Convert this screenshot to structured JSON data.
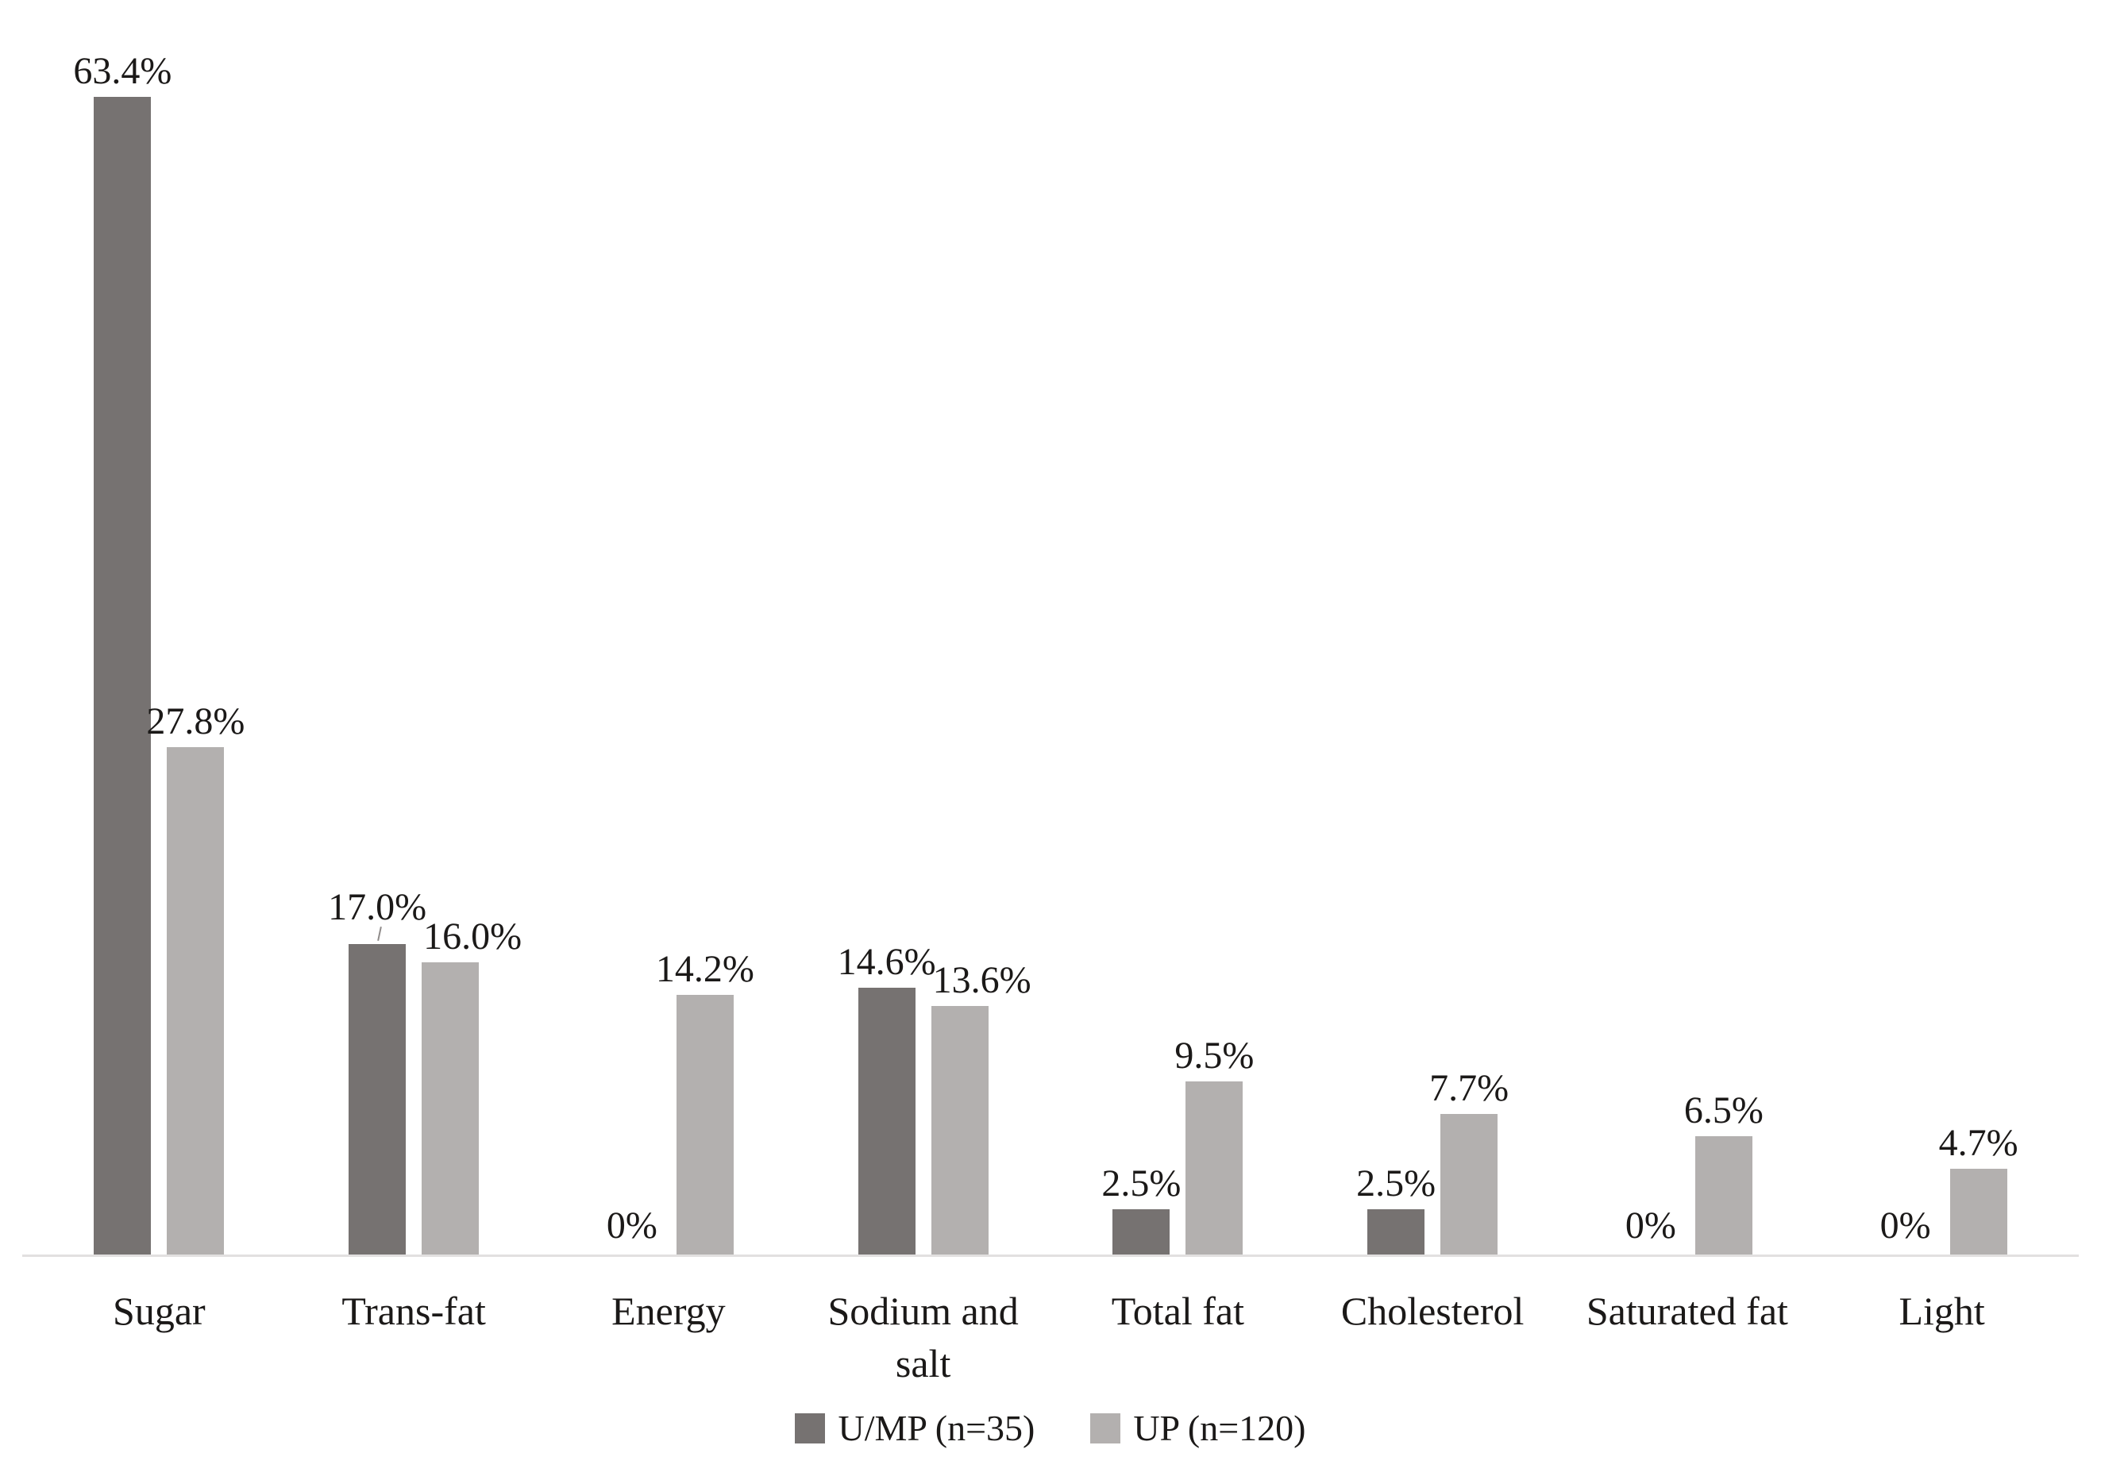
{
  "chart_data": {
    "type": "bar",
    "categories": [
      "Sugar",
      "Trans-fat",
      "Energy",
      "Sodium and\nsalt",
      "Total fat",
      "Cholesterol",
      "Saturated fat",
      "Light"
    ],
    "series": [
      {
        "name": "U/MP (n=35)",
        "color": "#767271",
        "values": [
          63.4,
          17.0,
          0,
          14.6,
          2.5,
          2.5,
          0,
          0
        ],
        "labels": [
          "63.4%",
          "17.0%",
          "0%",
          "14.6%",
          "2.5%",
          "2.5%",
          "0%",
          "0%"
        ]
      },
      {
        "name": "UP (n=120)",
        "color": "#b3b0af",
        "values": [
          27.8,
          16.0,
          14.2,
          13.6,
          9.5,
          7.7,
          6.5,
          4.7
        ],
        "labels": [
          "27.8%",
          "16.0%",
          "14.2%",
          "13.6%",
          "9.5%",
          "7.7%",
          "6.5%",
          "4.7%"
        ]
      }
    ],
    "ylim": [
      0,
      70
    ],
    "xlabel": "",
    "ylabel": "",
    "title": "",
    "grid": false,
    "legend_position": "bottom",
    "axis_color": "#e2e0e0",
    "text_color": "#1b1918",
    "label_adjustments": [
      {
        "series": 0,
        "index": 1,
        "dy": -14,
        "leader": true
      },
      {
        "series": 1,
        "index": 1,
        "dx": 28
      },
      {
        "series": 1,
        "index": 3,
        "dx": 28
      }
    ]
  },
  "legend": {
    "items": [
      {
        "label": "U/MP (n=35)",
        "swatch": "#767271"
      },
      {
        "label": "UP (n=120)",
        "swatch": "#b3b0af"
      }
    ]
  }
}
